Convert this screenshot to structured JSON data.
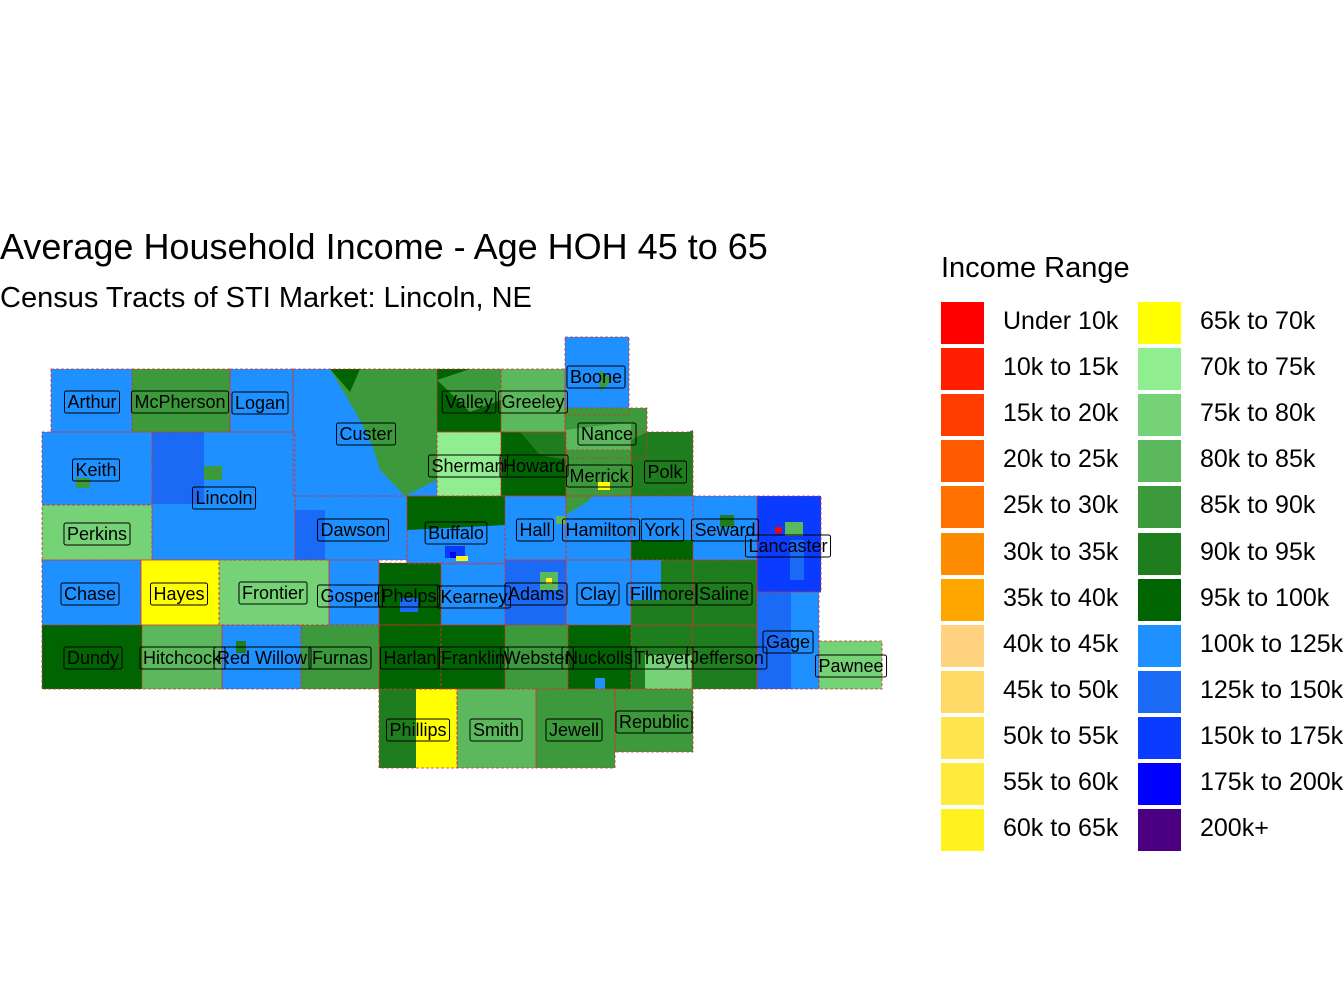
{
  "title": "Average Household Income - Age HOH 45 to 65",
  "subtitle": "Census Tracts of STI Market: Lincoln, NE",
  "legend": {
    "title": "Income Range",
    "items": [
      {
        "label": "Under 10k",
        "color": "#FF0000"
      },
      {
        "label": "10k to 15k",
        "color": "#FF1E00"
      },
      {
        "label": "15k to 20k",
        "color": "#FF3C00"
      },
      {
        "label": "20k to 25k",
        "color": "#FF5A00"
      },
      {
        "label": "25k to 30k",
        "color": "#FF7200"
      },
      {
        "label": "30k to 35k",
        "color": "#FF8C00"
      },
      {
        "label": "35k to 40k",
        "color": "#FFA500"
      },
      {
        "label": "40k to 45k",
        "color": "#FFD27F"
      },
      {
        "label": "45k to 50k",
        "color": "#FFD966"
      },
      {
        "label": "50k to 55k",
        "color": "#FFE44D"
      },
      {
        "label": "55k to 60k",
        "color": "#FFEB3B"
      },
      {
        "label": "60k to 65k",
        "color": "#FFF21E"
      },
      {
        "label": "65k to 70k",
        "color": "#FFFF00"
      },
      {
        "label": "70k to 75k",
        "color": "#90EE90"
      },
      {
        "label": "75k to 80k",
        "color": "#76D276"
      },
      {
        "label": "80k to 85k",
        "color": "#5CB85C"
      },
      {
        "label": "85k to 90k",
        "color": "#3C9A3C"
      },
      {
        "label": "90k to 95k",
        "color": "#1E7E1E"
      },
      {
        "label": "95k to 100k",
        "color": "#006400"
      },
      {
        "label": "100k to 125k",
        "color": "#1E90FF"
      },
      {
        "label": "125k to 150k",
        "color": "#1A6AF5"
      },
      {
        "label": "150k to 175k",
        "color": "#0A3CFF"
      },
      {
        "label": "175k to 200k",
        "color": "#0000FF"
      },
      {
        "label": "200k+",
        "color": "#4B0082"
      }
    ]
  },
  "counties": [
    {
      "name": "Arthur",
      "fill": "100k to 125k"
    },
    {
      "name": "McPherson",
      "fill": "85k to 90k"
    },
    {
      "name": "Logan",
      "fill": "100k to 125k"
    },
    {
      "name": "Custer",
      "fill": "100k to 125k"
    },
    {
      "name": "Valley",
      "fill": "95k to 100k"
    },
    {
      "name": "Greeley",
      "fill": "80k to 85k"
    },
    {
      "name": "Boone",
      "fill": "100k to 125k"
    },
    {
      "name": "Nance",
      "fill": "80k to 85k"
    },
    {
      "name": "Keith",
      "fill": "100k to 125k"
    },
    {
      "name": "Lincoln",
      "fill": "100k to 125k"
    },
    {
      "name": "Sherman",
      "fill": "70k to 75k"
    },
    {
      "name": "Howard",
      "fill": "90k to 95k"
    },
    {
      "name": "Merrick",
      "fill": "85k to 90k"
    },
    {
      "name": "Polk",
      "fill": "90k to 95k"
    },
    {
      "name": "Perkins",
      "fill": "75k to 80k"
    },
    {
      "name": "Dawson",
      "fill": "100k to 125k"
    },
    {
      "name": "Buffalo",
      "fill": "100k to 125k"
    },
    {
      "name": "Hall",
      "fill": "100k to 125k"
    },
    {
      "name": "Hamilton",
      "fill": "100k to 125k"
    },
    {
      "name": "York",
      "fill": "100k to 125k"
    },
    {
      "name": "Seward",
      "fill": "100k to 125k"
    },
    {
      "name": "Lancaster",
      "fill": "150k to 175k"
    },
    {
      "name": "Chase",
      "fill": "100k to 125k"
    },
    {
      "name": "Hayes",
      "fill": "65k to 70k"
    },
    {
      "name": "Frontier",
      "fill": "75k to 80k"
    },
    {
      "name": "Gosper",
      "fill": "100k to 125k"
    },
    {
      "name": "Phelps",
      "fill": "95k to 100k"
    },
    {
      "name": "Kearney",
      "fill": "100k to 125k"
    },
    {
      "name": "Adams",
      "fill": "125k to 150k"
    },
    {
      "name": "Clay",
      "fill": "100k to 125k"
    },
    {
      "name": "Fillmore",
      "fill": "100k to 125k"
    },
    {
      "name": "Saline",
      "fill": "90k to 95k"
    },
    {
      "name": "Dundy",
      "fill": "95k to 100k"
    },
    {
      "name": "Hitchcock",
      "fill": "80k to 85k"
    },
    {
      "name": "Red Willow",
      "fill": "100k to 125k"
    },
    {
      "name": "Furnas",
      "fill": "85k to 90k"
    },
    {
      "name": "Harlan",
      "fill": "95k to 100k"
    },
    {
      "name": "Franklin",
      "fill": "95k to 100k"
    },
    {
      "name": "Webster",
      "fill": "85k to 90k"
    },
    {
      "name": "Nuckolls",
      "fill": "95k to 100k"
    },
    {
      "name": "Thayer",
      "fill": "90k to 95k"
    },
    {
      "name": "Jefferson",
      "fill": "90k to 95k"
    },
    {
      "name": "Gage",
      "fill": "100k to 125k"
    },
    {
      "name": "Pawnee",
      "fill": "75k to 80k"
    },
    {
      "name": "Phillips",
      "fill": "90k to 95k"
    },
    {
      "name": "Smith",
      "fill": "80k to 85k"
    },
    {
      "name": "Jewell",
      "fill": "85k to 90k"
    },
    {
      "name": "Republic",
      "fill": "85k to 90k"
    }
  ]
}
